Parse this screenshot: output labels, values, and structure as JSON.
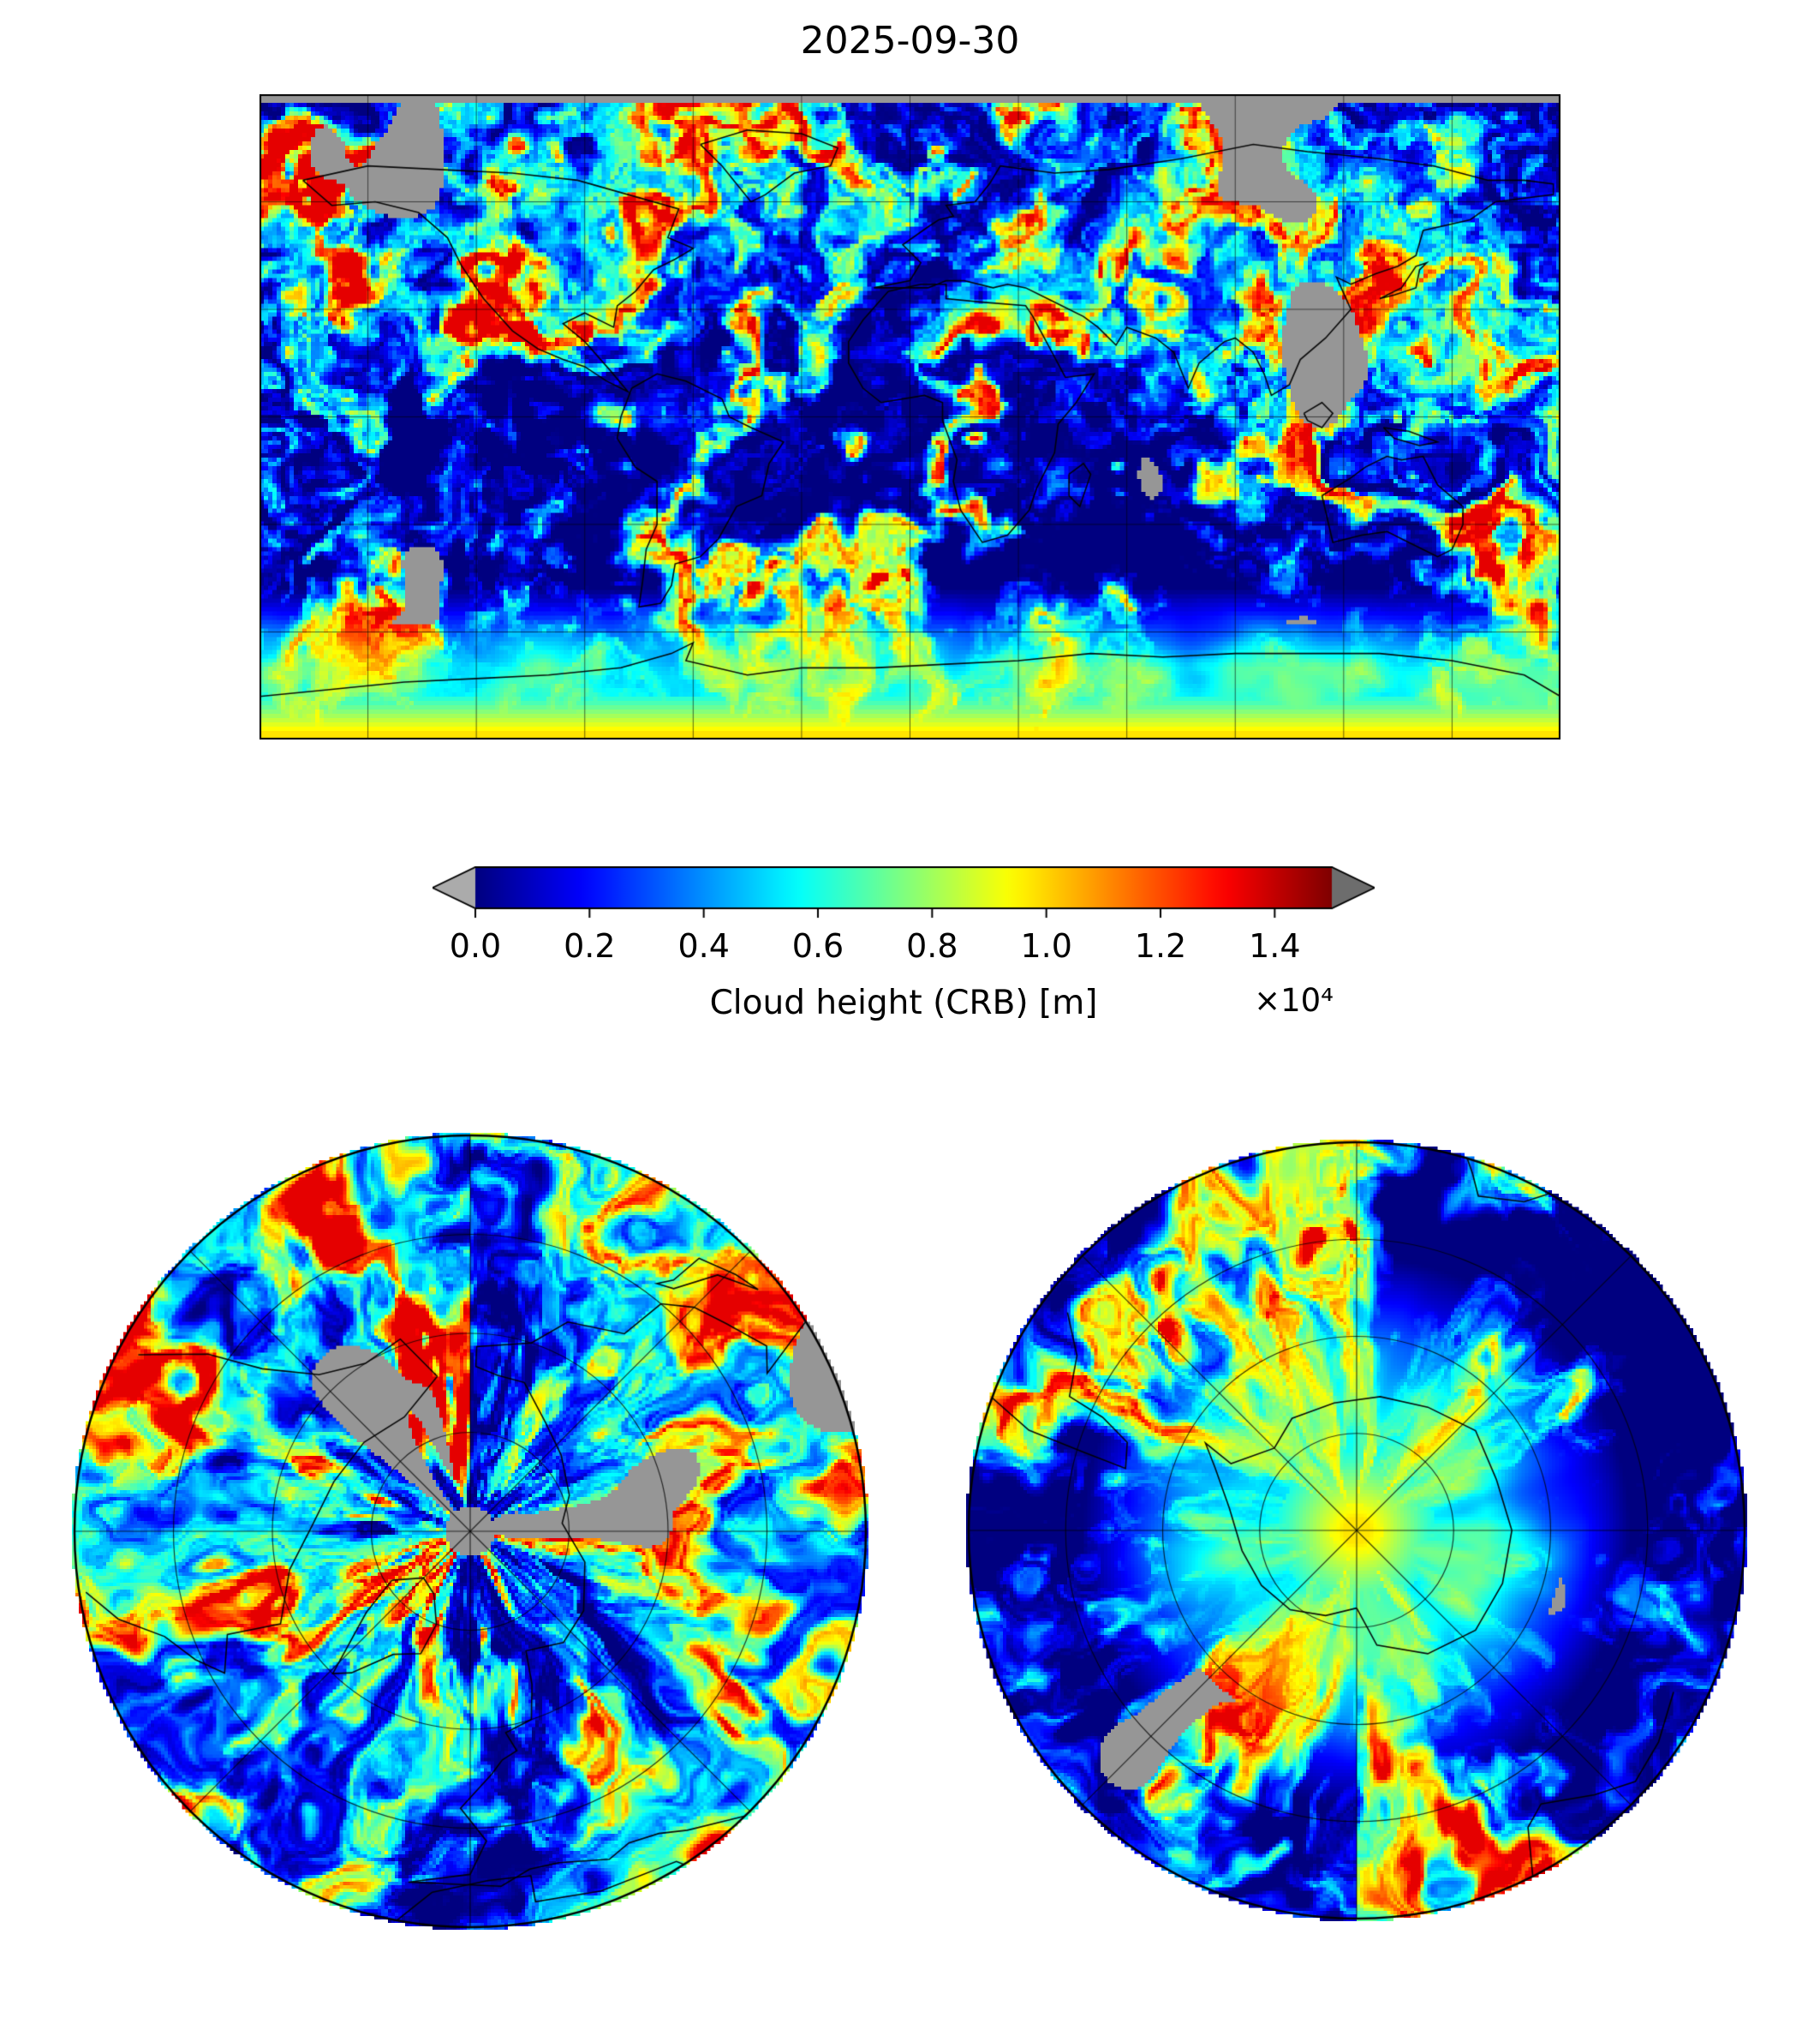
{
  "figure": {
    "title": "2025-09-30",
    "background": "#ffffff"
  },
  "colorbar": {
    "label": "Cloud height (CRB) [m]",
    "scale_label": "×10⁴",
    "vmin": 0.0,
    "vmax": 1.5,
    "colormap": "jet",
    "under_color": "#ababab",
    "over_color": "#6d6d6d",
    "missing_color": "#969696",
    "ticks": [
      {
        "label": "0.0",
        "value": 0.0
      },
      {
        "label": "0.2",
        "value": 0.2
      },
      {
        "label": "0.4",
        "value": 0.4
      },
      {
        "label": "0.6",
        "value": 0.6
      },
      {
        "label": "0.8",
        "value": 0.8
      },
      {
        "label": "1.0",
        "value": 1.0
      },
      {
        "label": "1.2",
        "value": 1.2
      },
      {
        "label": "1.4",
        "value": 1.4
      }
    ]
  },
  "chart_data": {
    "type": "heatmap",
    "title": "2025-09-30",
    "colorbar_label": "Cloud height (CRB) [m]",
    "value_units": "m",
    "value_scale_factor": 10000,
    "value_range_m": [
      0,
      15000
    ],
    "colorbar_tick_values_m": [
      0,
      2000,
      4000,
      6000,
      8000,
      10000,
      12000,
      14000
    ],
    "colormap": "jet",
    "colorbar_extend": "both",
    "missing_data_color": "gray",
    "grid": true,
    "panels": [
      {
        "name": "global",
        "projection": "equirectangular",
        "extent": "lon -180..180, lat -90..90",
        "gridline_spacing_deg": 30
      },
      {
        "name": "arctic",
        "projection": "north polar azimuthal",
        "extent": "lat 30N..90N",
        "graticule": "3 latitude circles, meridians every 45 deg"
      },
      {
        "name": "antarctic",
        "projection": "south polar azimuthal",
        "extent": "lat 30S..90S",
        "graticule": "3 latitude circles, meridians every 45 deg"
      }
    ],
    "description": "Global satellite cloud-top height (CRB) field for 2025-09-30: jet colormap, blue = low clouds, green/yellow = high clouds, red = very high, gray = missing data; high values over Antarctica, missing-data gray strip at the north edge"
  }
}
